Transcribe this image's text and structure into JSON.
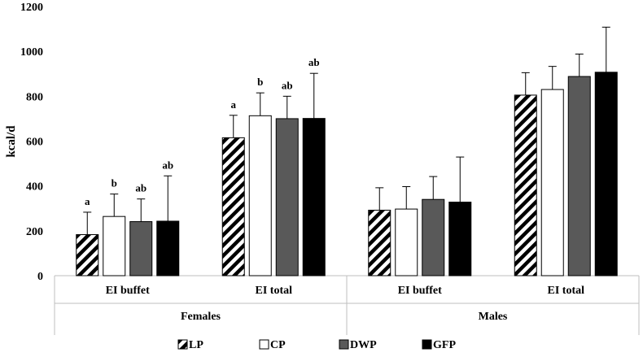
{
  "chart_data": {
    "type": "bar",
    "title": "",
    "ylabel": "kcal/d",
    "xlabel": "",
    "ylim": [
      0,
      1200
    ],
    "yticks": [
      0,
      200,
      400,
      600,
      800,
      1000,
      1200
    ],
    "groups": [
      {
        "label": "Females",
        "subcategories": [
          "EI buffet",
          "EI total"
        ]
      },
      {
        "label": "Males",
        "subcategories": [
          "EI buffet",
          "EI total"
        ]
      }
    ],
    "series": [
      {
        "name": "LP",
        "pattern": "hatched",
        "values": [
          183,
          615,
          292,
          805
        ],
        "errors": [
          100,
          100,
          100,
          100
        ],
        "letters": [
          "a",
          "a",
          "",
          ""
        ]
      },
      {
        "name": "CP",
        "pattern": "open",
        "values": [
          264,
          713,
          297,
          830
        ],
        "errors": [
          100,
          102,
          100,
          103
        ],
        "letters": [
          "b",
          "b",
          "",
          ""
        ]
      },
      {
        "name": "DWP",
        "pattern": "grey",
        "values": [
          241,
          700,
          340,
          888
        ],
        "errors": [
          101,
          100,
          102,
          100
        ],
        "letters": [
          "ab",
          "ab",
          "",
          ""
        ]
      },
      {
        "name": "GFP",
        "pattern": "black",
        "values": [
          243,
          701,
          328,
          907
        ],
        "errors": [
          202,
          201,
          201,
          201
        ],
        "letters": [
          "ab",
          "ab",
          "",
          ""
        ]
      }
    ],
    "colors": {
      "LP_stroke": "#000000",
      "CP_fill": "#ffffff",
      "DWP_fill": "#595959",
      "GFP_fill": "#000000",
      "axis": "#bfbfbf"
    }
  }
}
